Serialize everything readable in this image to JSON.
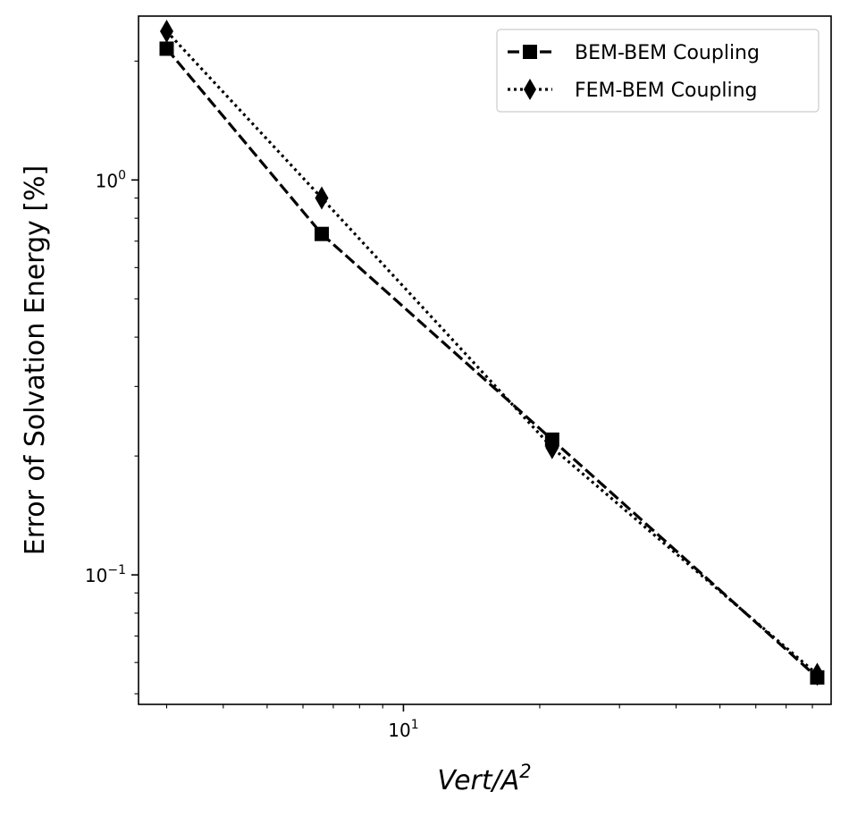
{
  "chart_data": {
    "type": "line",
    "xscale": "log",
    "yscale": "log",
    "xlim": [
      2.6,
      88
    ],
    "ylim": [
      0.047,
      2.6
    ],
    "xlabel": "Vert/A",
    "xlabel_sup": "2",
    "ylabel": "Error of Solvation Energy [%]",
    "x_ticks": [
      {
        "base": "10",
        "exp": "1",
        "value": 10
      }
    ],
    "y_ticks": [
      {
        "base": "10",
        "exp": "0",
        "value": 1
      },
      {
        "base": "10",
        "exp": "−1",
        "value": 0.1
      }
    ],
    "legend_position": "top-right",
    "grid": false,
    "series": [
      {
        "name": "BEM-BEM Coupling",
        "marker": "square",
        "linestyle": "dashed",
        "color": "#000000",
        "x": [
          3.0,
          6.6,
          21.3,
          82.0
        ],
        "y": [
          2.15,
          0.73,
          0.22,
          0.055
        ]
      },
      {
        "name": "FEM-BEM Coupling",
        "marker": "diamond",
        "linestyle": "dotted",
        "color": "#000000",
        "x": [
          3.0,
          6.6,
          21.3,
          82.0
        ],
        "y": [
          2.38,
          0.9,
          0.21,
          0.056
        ]
      }
    ]
  }
}
